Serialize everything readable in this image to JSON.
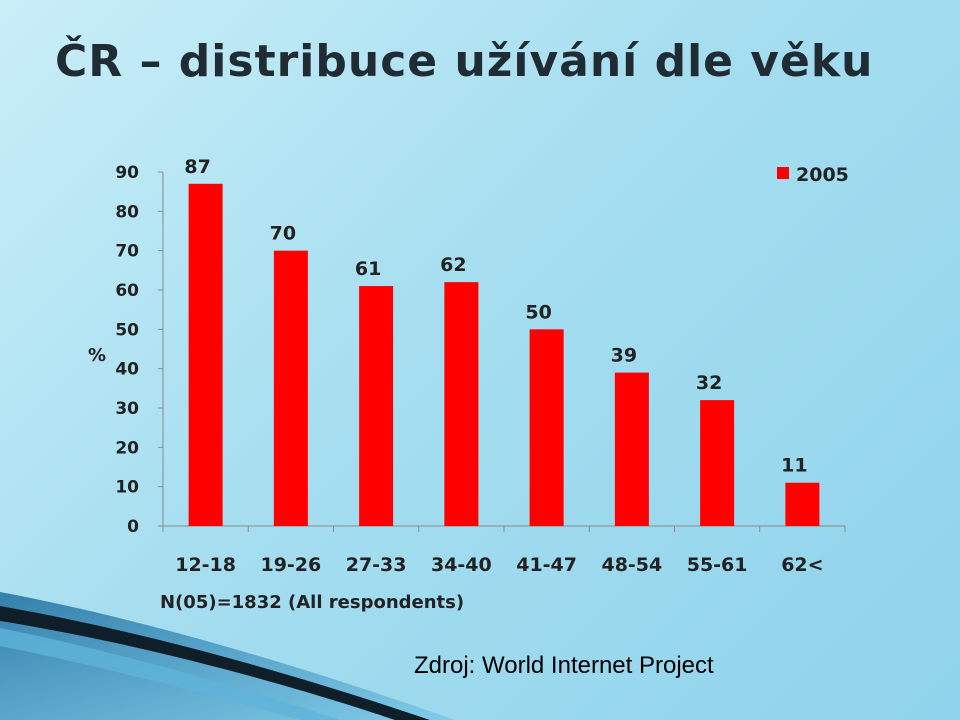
{
  "slide": {
    "title": "ČR – distribuce užívání dle věku",
    "source": "Zdroj: World Internet Project"
  },
  "chart_data": {
    "type": "bar",
    "categories": [
      "12-18",
      "19-26",
      "27-33",
      "34-40",
      "41-47",
      "48-54",
      "55-61",
      "62<"
    ],
    "series": [
      {
        "name": "2005",
        "values": [
          87,
          70,
          61,
          62,
          50,
          39,
          32,
          11
        ],
        "color": "#ff0000"
      }
    ],
    "data_labels": [
      "87",
      "70",
      "61",
      "62",
      "50",
      "39",
      "32",
      "11"
    ],
    "ylabel": "%",
    "ylim": [
      0,
      90
    ],
    "yticks": [
      0,
      10,
      20,
      30,
      40,
      50,
      60,
      70,
      80,
      90
    ],
    "note": "N(05)=1832   (All respondents)",
    "grid": false,
    "legend_position": "top-right"
  }
}
